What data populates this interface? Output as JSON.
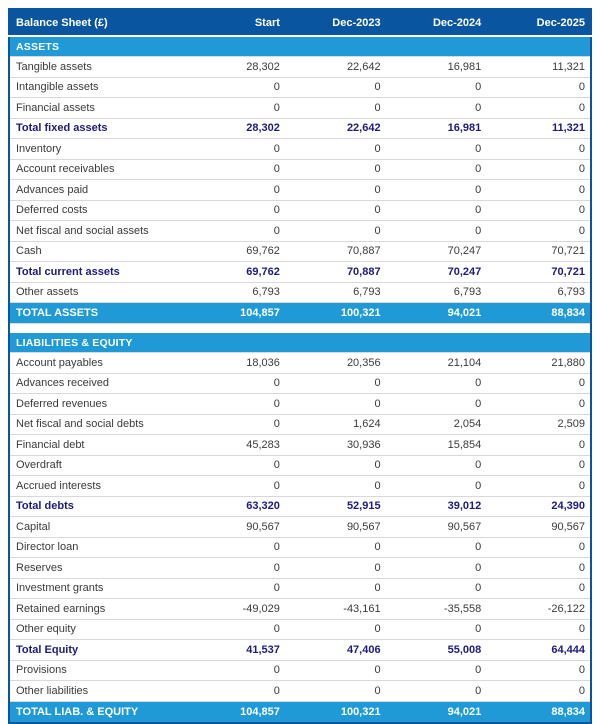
{
  "title": "Balance Sheet (£)",
  "columns": [
    "Start",
    "Dec-2023",
    "Dec-2024",
    "Dec-2025"
  ],
  "colors": {
    "header_bg": "#0a55a0",
    "section_bar_bg": "#1f9ad7",
    "total_bar_bg": "#1f9ad7",
    "subtotal_text": "#1d1b7c",
    "body_text": "#3a3a3a",
    "row_divider": "#d9d9d9",
    "bar_text": "#ffffff"
  },
  "chart_data": {
    "type": "table",
    "title": "Balance Sheet (£)",
    "categories": [
      "Start",
      "Dec-2023",
      "Dec-2024",
      "Dec-2025"
    ],
    "series": [
      {
        "name": "Total fixed assets",
        "values": [
          28302,
          22642,
          16981,
          11321
        ]
      },
      {
        "name": "Total current assets",
        "values": [
          69762,
          70887,
          70247,
          70721
        ]
      },
      {
        "name": "TOTAL ASSETS",
        "values": [
          104857,
          100321,
          94021,
          88834
        ]
      },
      {
        "name": "Total debts",
        "values": [
          63320,
          52915,
          39012,
          24390
        ]
      },
      {
        "name": "Total Equity",
        "values": [
          41537,
          47406,
          55008,
          64444
        ]
      },
      {
        "name": "TOTAL LIAB. & EQUITY",
        "values": [
          104857,
          100321,
          94021,
          88834
        ]
      }
    ]
  },
  "sections": [
    {
      "header": "ASSETS",
      "rows": [
        {
          "label": "Tangible assets",
          "style": "item",
          "values": [
            "28,302",
            "22,642",
            "16,981",
            "11,321"
          ]
        },
        {
          "label": "Intangible assets",
          "style": "item",
          "values": [
            "0",
            "0",
            "0",
            "0"
          ]
        },
        {
          "label": "Financial assets",
          "style": "item",
          "values": [
            "0",
            "0",
            "0",
            "0"
          ]
        },
        {
          "label": "Total fixed assets",
          "style": "subtotal",
          "values": [
            "28,302",
            "22,642",
            "16,981",
            "11,321"
          ]
        },
        {
          "label": "Inventory",
          "style": "item",
          "values": [
            "0",
            "0",
            "0",
            "0"
          ]
        },
        {
          "label": "Account receivables",
          "style": "item",
          "values": [
            "0",
            "0",
            "0",
            "0"
          ]
        },
        {
          "label": "Advances paid",
          "style": "item",
          "values": [
            "0",
            "0",
            "0",
            "0"
          ]
        },
        {
          "label": "Deferred costs",
          "style": "item",
          "values": [
            "0",
            "0",
            "0",
            "0"
          ]
        },
        {
          "label": "Net fiscal and social assets",
          "style": "item",
          "values": [
            "0",
            "0",
            "0",
            "0"
          ]
        },
        {
          "label": "Cash",
          "style": "item",
          "values": [
            "69,762",
            "70,887",
            "70,247",
            "70,721"
          ]
        },
        {
          "label": "Total current assets",
          "style": "subtotal",
          "values": [
            "69,762",
            "70,887",
            "70,247",
            "70,721"
          ]
        },
        {
          "label": "Other assets",
          "style": "item",
          "values": [
            "6,793",
            "6,793",
            "6,793",
            "6,793"
          ]
        },
        {
          "label": "TOTAL ASSETS",
          "style": "grand",
          "values": [
            "104,857",
            "100,321",
            "94,021",
            "88,834"
          ]
        }
      ]
    },
    {
      "header": "LIABILITIES & EQUITY",
      "rows": [
        {
          "label": "Account payables",
          "style": "item",
          "values": [
            "18,036",
            "20,356",
            "21,104",
            "21,880"
          ]
        },
        {
          "label": "Advances received",
          "style": "item",
          "values": [
            "0",
            "0",
            "0",
            "0"
          ]
        },
        {
          "label": "Deferred revenues",
          "style": "item",
          "values": [
            "0",
            "0",
            "0",
            "0"
          ]
        },
        {
          "label": "Net fiscal and social debts",
          "style": "item",
          "values": [
            "0",
            "1,624",
            "2,054",
            "2,509"
          ]
        },
        {
          "label": "Financial debt",
          "style": "item",
          "values": [
            "45,283",
            "30,936",
            "15,854",
            "0"
          ]
        },
        {
          "label": "Overdraft",
          "style": "item",
          "values": [
            "0",
            "0",
            "0",
            "0"
          ]
        },
        {
          "label": "Accrued interests",
          "style": "item",
          "values": [
            "0",
            "0",
            "0",
            "0"
          ]
        },
        {
          "label": "Total debts",
          "style": "subtotal",
          "values": [
            "63,320",
            "52,915",
            "39,012",
            "24,390"
          ]
        },
        {
          "label": "Capital",
          "style": "item",
          "values": [
            "90,567",
            "90,567",
            "90,567",
            "90,567"
          ]
        },
        {
          "label": "Director loan",
          "style": "item",
          "values": [
            "0",
            "0",
            "0",
            "0"
          ]
        },
        {
          "label": "Reserves",
          "style": "item",
          "values": [
            "0",
            "0",
            "0",
            "0"
          ]
        },
        {
          "label": "Investment grants",
          "style": "item",
          "values": [
            "0",
            "0",
            "0",
            "0"
          ]
        },
        {
          "label": "Retained earnings",
          "style": "item",
          "values": [
            "-49,029",
            "-43,161",
            "-35,558",
            "-26,122"
          ]
        },
        {
          "label": "Other equity",
          "style": "item",
          "values": [
            "0",
            "0",
            "0",
            "0"
          ]
        },
        {
          "label": "Total Equity",
          "style": "subtotal",
          "values": [
            "41,537",
            "47,406",
            "55,008",
            "64,444"
          ]
        },
        {
          "label": "Provisions",
          "style": "item",
          "values": [
            "0",
            "0",
            "0",
            "0"
          ]
        },
        {
          "label": "Other liabilities",
          "style": "item",
          "values": [
            "0",
            "0",
            "0",
            "0"
          ]
        },
        {
          "label": "TOTAL LIAB. & EQUITY",
          "style": "grand",
          "values": [
            "104,857",
            "100,321",
            "94,021",
            "88,834"
          ]
        }
      ]
    }
  ]
}
